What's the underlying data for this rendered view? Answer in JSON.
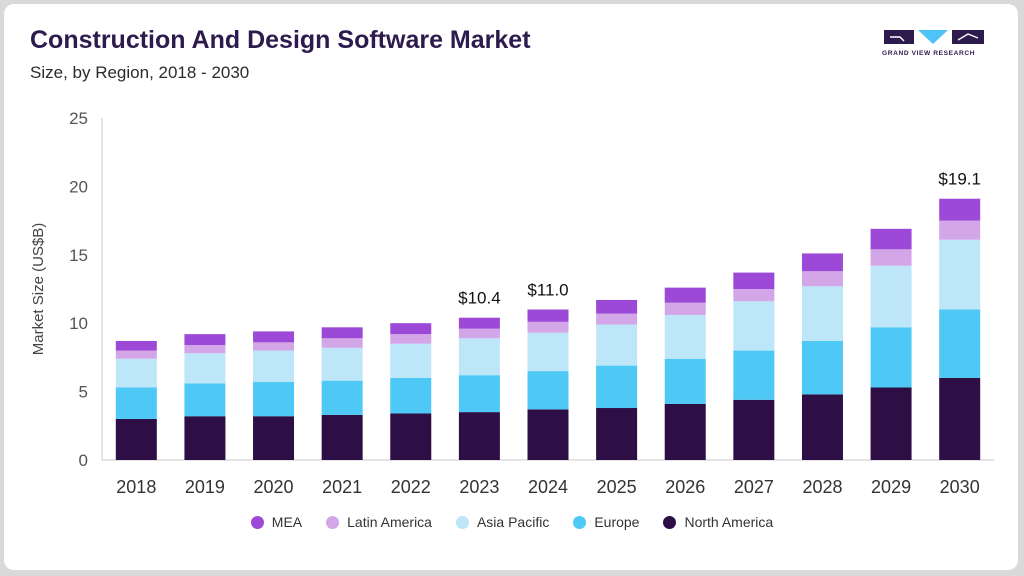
{
  "header": {
    "title": "Construction And Design Software Market",
    "subtitle": "Size, by Region, 2018 - 2030",
    "logo_text": "GRAND VIEW RESEARCH"
  },
  "colors": {
    "logo_dark": "#2d1b4e",
    "logo_accent": "#4fc3f7"
  },
  "chart_data": {
    "type": "bar",
    "stacked": true,
    "ylabel": "Market Size (US$B)",
    "xlabel": "",
    "ylim": [
      0,
      25
    ],
    "yticks": [
      0,
      5,
      10,
      15,
      20,
      25
    ],
    "grid": false,
    "legend_position": "bottom",
    "categories": [
      "2018",
      "2019",
      "2020",
      "2021",
      "2022",
      "2023",
      "2024",
      "2025",
      "2026",
      "2027",
      "2028",
      "2029",
      "2030"
    ],
    "series": [
      {
        "name": "North America",
        "color": "#2d0f45",
        "values": [
          3.0,
          3.2,
          3.2,
          3.3,
          3.4,
          3.5,
          3.7,
          3.8,
          4.1,
          4.4,
          4.8,
          5.3,
          6.0
        ]
      },
      {
        "name": "Europe",
        "color": "#4ec8f4",
        "values": [
          2.3,
          2.4,
          2.5,
          2.5,
          2.6,
          2.7,
          2.8,
          3.1,
          3.3,
          3.6,
          3.9,
          4.4,
          5.0
        ]
      },
      {
        "name": "Asia Pacific",
        "color": "#bde6f8",
        "values": [
          2.1,
          2.2,
          2.3,
          2.4,
          2.5,
          2.7,
          2.8,
          3.0,
          3.2,
          3.6,
          4.0,
          4.5,
          5.1
        ]
      },
      {
        "name": "Latin America",
        "color": "#d3a6e8",
        "values": [
          0.6,
          0.6,
          0.6,
          0.7,
          0.7,
          0.7,
          0.8,
          0.8,
          0.9,
          0.9,
          1.1,
          1.2,
          1.4
        ]
      },
      {
        "name": "MEA",
        "color": "#9b49d6",
        "values": [
          0.7,
          0.8,
          0.8,
          0.8,
          0.8,
          0.8,
          0.9,
          1.0,
          1.1,
          1.2,
          1.3,
          1.5,
          1.6
        ]
      }
    ],
    "annotations": [
      {
        "category": "2023",
        "text": "$10.4"
      },
      {
        "category": "2024",
        "text": "$11.0"
      },
      {
        "category": "2030",
        "text": "$19.1"
      }
    ]
  }
}
